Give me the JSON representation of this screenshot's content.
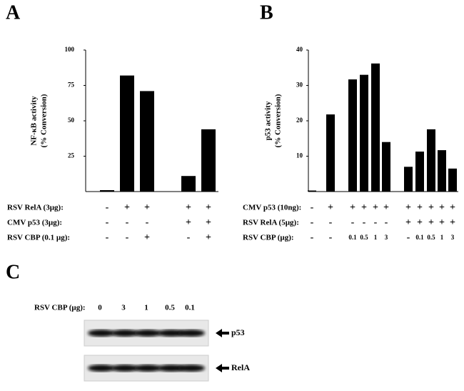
{
  "chart_data": [
    {
      "type": "bar",
      "panel": "A",
      "ylabel": [
        "NF-κB activity",
        "(% Conversion)"
      ],
      "values": [
        1,
        82,
        71,
        11,
        44
      ],
      "color": "#000000",
      "ylim": [
        0,
        100
      ],
      "yticks": [
        25,
        50,
        75,
        100
      ],
      "conditions": [
        {
          "label": "RSV RelA (3µg):",
          "marks": [
            "-",
            "+",
            "+",
            "+",
            "+"
          ]
        },
        {
          "label": "CMV p53 (3µg):",
          "marks": [
            "-",
            "-",
            "-",
            "+",
            "+"
          ]
        },
        {
          "label": "RSV CBP (0.1 µg):",
          "marks": [
            "-",
            "-",
            "+",
            "-",
            "+"
          ]
        }
      ]
    },
    {
      "type": "bar",
      "panel": "B",
      "ylabel": [
        "p53 activity",
        "(% Conversion)"
      ],
      "values": [
        0.3,
        21.8,
        31.7,
        33,
        36.2,
        14,
        7,
        11.3,
        17.6,
        11.7,
        6.5
      ],
      "color": "#000000",
      "ylim": [
        0,
        40
      ],
      "yticks": [
        10,
        20,
        30,
        40
      ],
      "conditions": [
        {
          "label": "CMV p53 (10ng):",
          "marks": [
            "-",
            "+",
            "+",
            "+",
            "+",
            "+",
            "+",
            "+",
            "+",
            "+",
            "+"
          ]
        },
        {
          "label": "RSV RelA (5µg):",
          "marks": [
            "-",
            "-",
            "-",
            "-",
            "-",
            "-",
            "+",
            "+",
            "+",
            "+",
            "+"
          ]
        },
        {
          "label": "RSV CBP (µg):",
          "marks": [
            "-",
            "-",
            "0.1",
            "0.5",
            "1",
            "3",
            "-",
            "0.1",
            "0.5",
            "1",
            "3"
          ]
        }
      ]
    }
  ],
  "blot": {
    "panel": "C",
    "label": "RSV CBP (µg):",
    "lanes": [
      "0",
      "3",
      "1",
      "0.5",
      "0.1"
    ],
    "bands": [
      "p53",
      "RelA"
    ]
  }
}
